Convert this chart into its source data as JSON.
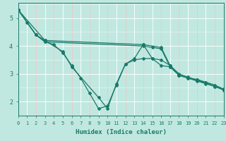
{
  "title": "",
  "xlabel": "Humidex (Indice chaleur)",
  "ylabel": "",
  "bg_color": "#c0e8e0",
  "line_color": "#1a7a6a",
  "grid_color_white": "#ffffff",
  "grid_color_pink": "#e8c8c8",
  "xlim": [
    0,
    23
  ],
  "ylim": [
    1.5,
    5.55
  ],
  "yticks": [
    2,
    3,
    4,
    5
  ],
  "xticks": [
    0,
    1,
    2,
    3,
    4,
    5,
    6,
    7,
    8,
    9,
    10,
    11,
    12,
    13,
    14,
    15,
    16,
    17,
    18,
    19,
    20,
    21,
    22,
    23
  ],
  "series": [
    {
      "x": [
        0,
        1,
        2,
        3,
        4,
        5,
        6,
        7,
        8,
        9,
        10,
        11,
        12,
        13,
        14,
        15,
        16,
        17,
        18,
        19,
        20,
        21,
        22,
        23
      ],
      "y": [
        5.3,
        4.85,
        4.4,
        4.15,
        4.05,
        3.75,
        3.3,
        2.85,
        2.3,
        1.75,
        1.85,
        2.6,
        3.35,
        3.5,
        3.55,
        3.55,
        3.5,
        3.3,
        3.0,
        2.88,
        2.78,
        2.68,
        2.55,
        2.42
      ]
    },
    {
      "x": [
        0,
        3,
        5,
        6,
        9,
        10,
        11,
        12,
        13,
        14,
        15,
        16,
        17,
        18,
        19,
        20,
        21,
        22,
        23
      ],
      "y": [
        5.3,
        4.2,
        3.8,
        3.25,
        2.15,
        1.75,
        2.65,
        3.35,
        3.55,
        4.05,
        3.55,
        3.3,
        3.25,
        2.95,
        2.85,
        2.75,
        2.65,
        2.55,
        2.42
      ]
    },
    {
      "x": [
        0,
        2,
        3,
        14,
        16,
        17,
        18,
        23
      ],
      "y": [
        5.3,
        4.4,
        4.2,
        4.05,
        3.95,
        3.3,
        2.95,
        2.45
      ]
    },
    {
      "x": [
        0,
        2,
        3,
        14,
        15,
        16,
        17,
        18,
        19,
        20,
        21,
        22,
        23
      ],
      "y": [
        5.3,
        4.4,
        4.15,
        4.0,
        3.95,
        3.9,
        3.25,
        2.95,
        2.85,
        2.8,
        2.7,
        2.6,
        2.45
      ]
    }
  ]
}
